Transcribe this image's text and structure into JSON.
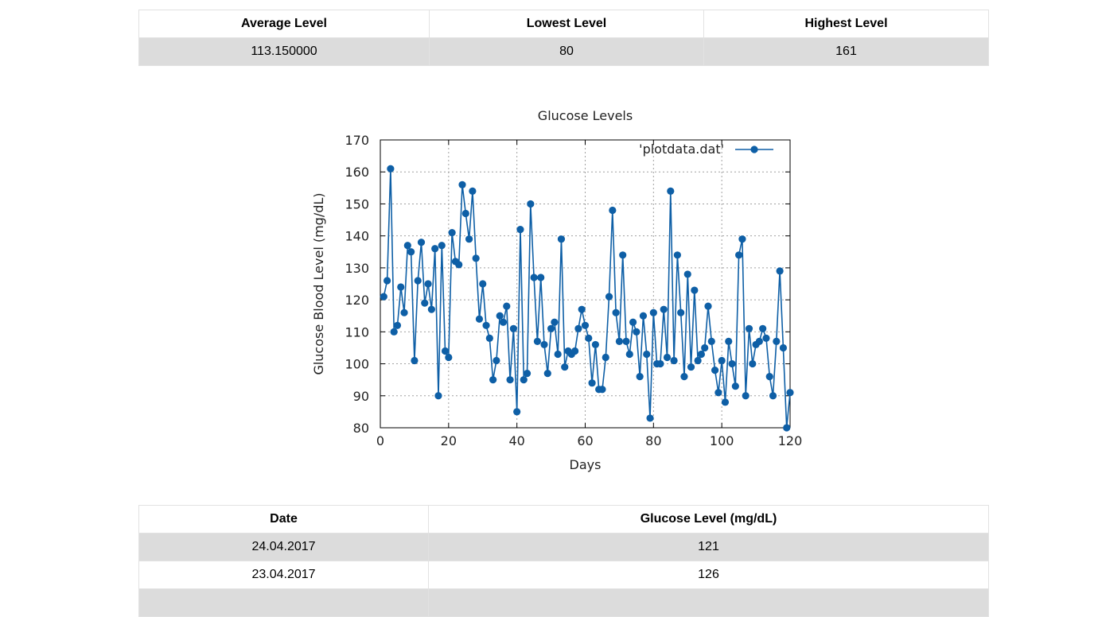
{
  "stats": {
    "headers": [
      "Average Level",
      "Lowest Level",
      "Highest Level"
    ],
    "values": [
      "113.150000",
      "80",
      "161"
    ]
  },
  "chart_data": {
    "type": "line",
    "title": "Glucose Levels",
    "xlabel": "Days",
    "ylabel": "Glucose Blood Level (mg/dL)",
    "xlim": [
      0,
      120
    ],
    "ylim": [
      80,
      170
    ],
    "xticks": [
      0,
      20,
      40,
      60,
      80,
      100,
      120
    ],
    "yticks": [
      80,
      90,
      100,
      110,
      120,
      130,
      140,
      150,
      160,
      170
    ],
    "grid": true,
    "legend": "top-right",
    "color": "#0e5fa6",
    "series": [
      {
        "name": "'plotdata.dat'",
        "x": [
          1,
          2,
          3,
          4,
          5,
          6,
          7,
          8,
          9,
          10,
          11,
          12,
          13,
          14,
          15,
          16,
          17,
          18,
          19,
          20,
          21,
          22,
          23,
          24,
          25,
          26,
          27,
          28,
          29,
          30,
          31,
          32,
          33,
          34,
          35,
          36,
          37,
          38,
          39,
          40,
          41,
          42,
          43,
          44,
          45,
          46,
          47,
          48,
          49,
          50,
          51,
          52,
          53,
          54,
          55,
          56,
          57,
          58,
          59,
          60,
          61,
          62,
          63,
          64,
          65,
          66,
          67,
          68,
          69,
          70,
          71,
          72,
          73,
          74,
          75,
          76,
          77,
          78,
          79,
          80,
          81,
          82,
          83,
          84,
          85,
          86,
          87,
          88,
          89,
          90,
          91,
          92,
          93,
          94,
          95,
          96,
          97,
          98,
          99,
          100,
          101,
          102,
          103,
          104,
          105,
          106,
          107,
          108,
          109,
          110,
          111,
          112,
          113,
          114,
          115,
          116,
          117,
          118,
          119,
          120
        ],
        "y": [
          121,
          126,
          161,
          110,
          112,
          124,
          116,
          137,
          135,
          101,
          126,
          138,
          119,
          125,
          117,
          136,
          90,
          137,
          104,
          102,
          141,
          132,
          131,
          156,
          147,
          139,
          154,
          133,
          114,
          125,
          112,
          108,
          95,
          101,
          115,
          113,
          118,
          95,
          111,
          85,
          142,
          95,
          97,
          150,
          127,
          107,
          127,
          106,
          97,
          111,
          113,
          103,
          139,
          99,
          104,
          103,
          104,
          111,
          117,
          112,
          108,
          94,
          106,
          92,
          92,
          102,
          121,
          148,
          116,
          107,
          134,
          107,
          103,
          113,
          110,
          96,
          115,
          103,
          83,
          116,
          100,
          100,
          117,
          102,
          154,
          101,
          134,
          116,
          96,
          128,
          99,
          123,
          101,
          103,
          105,
          118,
          107,
          98,
          91,
          101,
          88,
          107,
          100,
          93,
          134,
          139,
          90,
          111,
          100,
          106,
          107,
          111,
          108,
          96,
          90,
          107,
          129,
          105,
          80,
          91
        ]
      }
    ]
  },
  "table": {
    "headers": [
      "Date",
      "Glucose Level (mg/dL)"
    ],
    "rows": [
      [
        "24.04.2017",
        "121"
      ],
      [
        "23.04.2017",
        "126"
      ]
    ]
  }
}
